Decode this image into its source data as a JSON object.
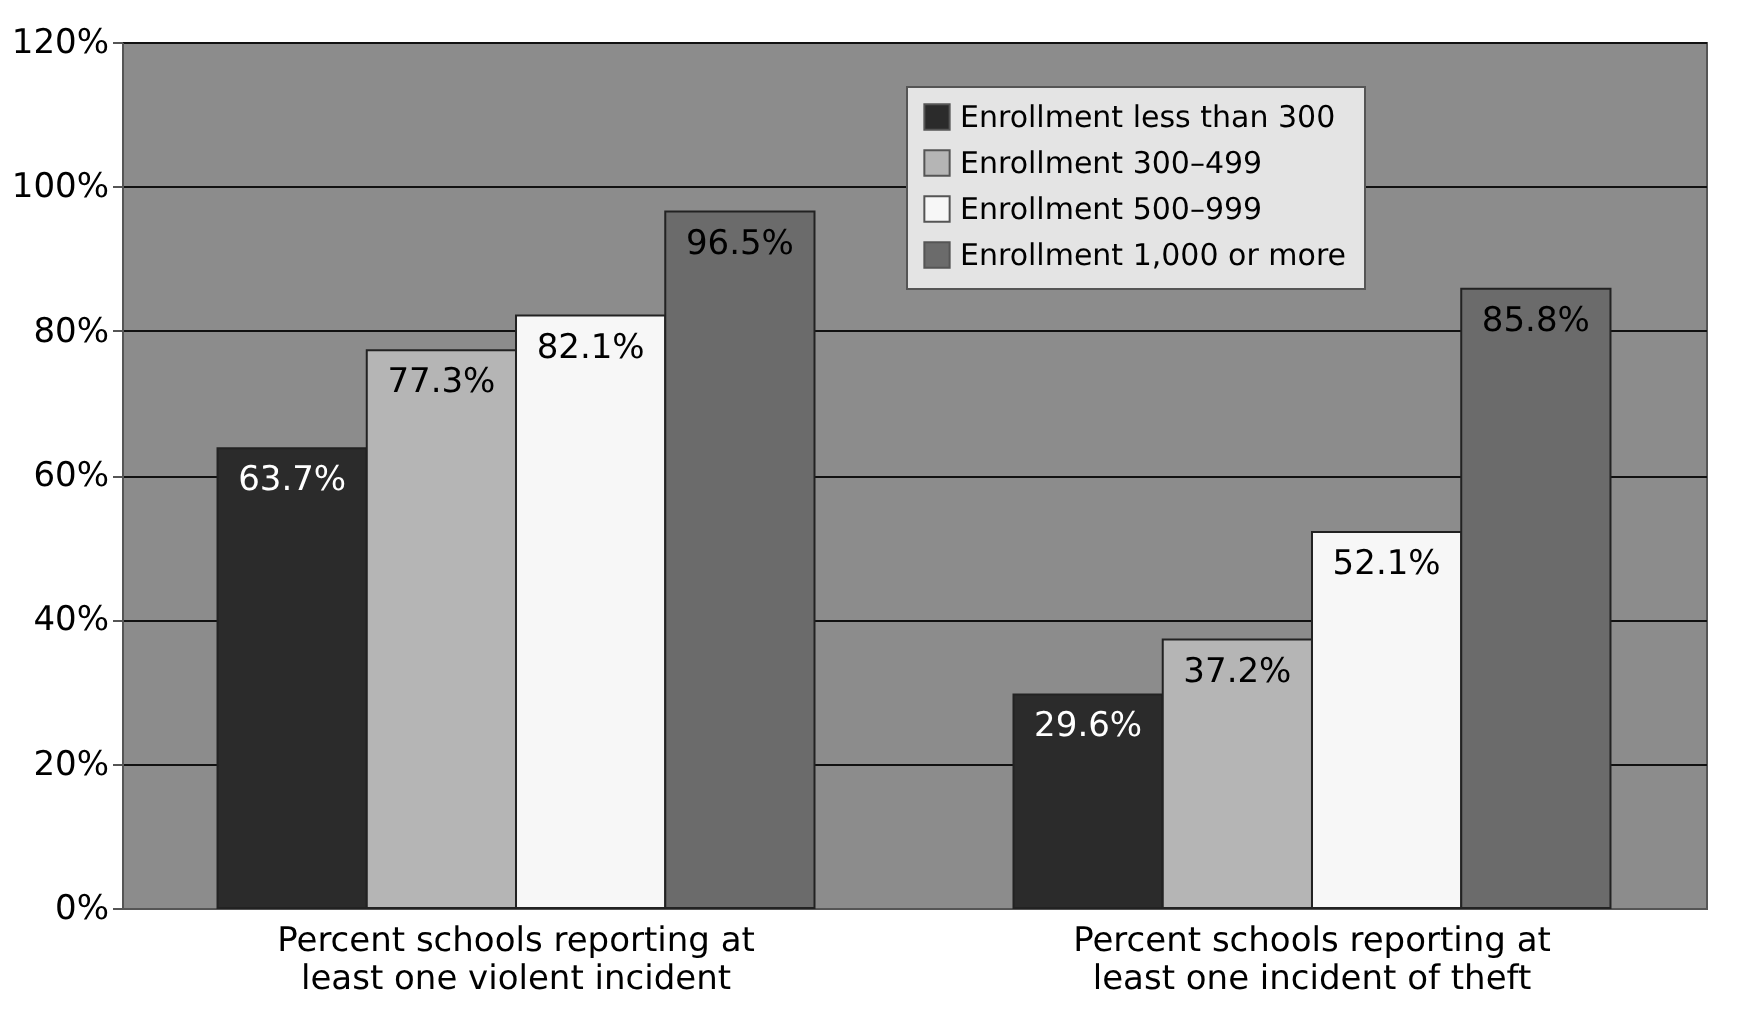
{
  "chart_data": {
    "type": "bar",
    "categories": [
      "Percent schools reporting at least one violent incident",
      "Percent schools reporting at least one incident of theft"
    ],
    "series": [
      {
        "name": "Enrollment less than 300",
        "color": "#2b2b2b",
        "values": [
          63.7,
          29.6
        ],
        "value_labels": [
          "63.7%",
          "29.6%"
        ]
      },
      {
        "name": "Enrollment 300–499",
        "color": "#b5b5b5",
        "values": [
          77.3,
          37.2
        ],
        "value_labels": [
          "77.3%",
          "37.2%"
        ]
      },
      {
        "name": "Enrollment 500–999",
        "color": "#f7f7f7",
        "values": [
          82.1,
          52.1
        ],
        "value_labels": [
          "82.1%",
          "52.1%"
        ]
      },
      {
        "name": "Enrollment 1,000 or more",
        "color": "#6b6b6b",
        "values": [
          96.5,
          85.8
        ],
        "value_labels": [
          "96.5%",
          "85.8%"
        ]
      }
    ],
    "ylim": [
      0,
      120
    ],
    "yticks": [
      {
        "value": 0,
        "label": "0%"
      },
      {
        "value": 20,
        "label": "20%"
      },
      {
        "value": 40,
        "label": "40%"
      },
      {
        "value": 60,
        "label": "60%"
      },
      {
        "value": 80,
        "label": "80%"
      },
      {
        "value": 100,
        "label": "100%"
      },
      {
        "value": 120,
        "label": "120%"
      }
    ],
    "grid": "y",
    "legend": "top right"
  }
}
